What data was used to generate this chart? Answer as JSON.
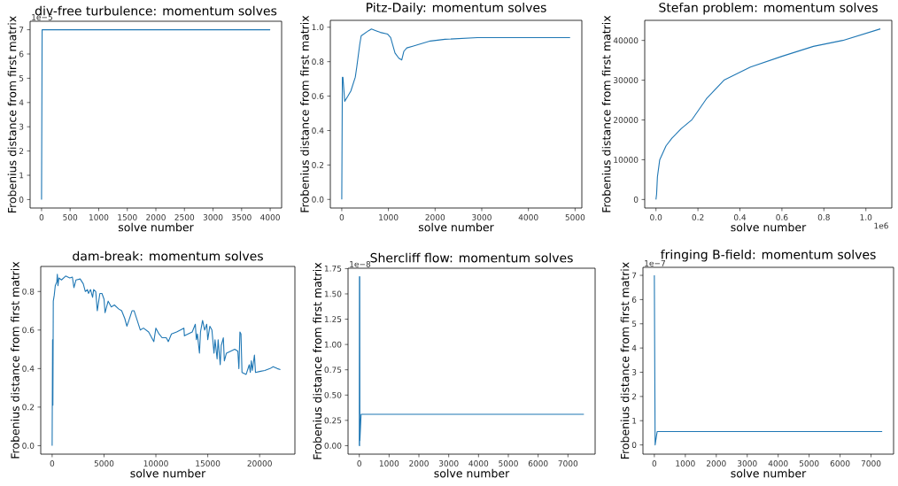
{
  "chart_data": [
    {
      "type": "line",
      "title": "div-free turbulence: momentum solves",
      "xlabel": "solve number",
      "ylabel": "Frobenius distance from first matrix",
      "color": "#1f77b4",
      "annotations": [
        "1e−5"
      ],
      "x": [
        0,
        10,
        4000
      ],
      "values": [
        0,
        7,
        7
      ],
      "xlim": [
        -200,
        4200
      ],
      "ylim": [
        -0.35,
        7.35
      ],
      "xticks": [
        0,
        500,
        1000,
        1500,
        2000,
        2500,
        3000,
        3500,
        4000
      ],
      "yticks": [
        0,
        1,
        2,
        3,
        4,
        5,
        6,
        7
      ]
    },
    {
      "type": "line",
      "title": "Pitz-Daily: momentum solves",
      "xlabel": "solve number",
      "ylabel": "Frobenius distance from first matrix",
      "color": "#1f77b4",
      "x": [
        0,
        13,
        25,
        63,
        132,
        195,
        290,
        322,
        385,
        416,
        574,
        637,
        731,
        826,
        984,
        1047,
        1141,
        1223,
        1286,
        1330,
        1394,
        1520,
        1646,
        1898,
        2213,
        2907,
        4893
      ],
      "values": [
        0,
        0.71,
        0.71,
        0.57,
        0.6,
        0.63,
        0.71,
        0.77,
        0.9,
        0.95,
        0.98,
        0.99,
        0.98,
        0.97,
        0.96,
        0.94,
        0.85,
        0.82,
        0.81,
        0.86,
        0.88,
        0.89,
        0.9,
        0.92,
        0.93,
        0.94,
        0.94
      ],
      "xlim": [
        -245,
        5145
      ],
      "ylim": [
        -0.05,
        1.04
      ],
      "xticks": [
        0,
        1000,
        2000,
        3000,
        4000,
        5000
      ],
      "yticks": [
        {
          "value": 0,
          "label": "0.0"
        },
        {
          "value": 0.2,
          "label": "0.2"
        },
        {
          "value": 0.4,
          "label": "0.4"
        },
        {
          "value": 0.6,
          "label": "0.6"
        },
        {
          "value": 0.8,
          "label": "0.8"
        },
        {
          "value": 1,
          "label": "1.0"
        }
      ]
    },
    {
      "type": "line",
      "title": "Stefan problem: momentum solves",
      "xlabel": "solve number",
      "ylabel": "Frobenius distance from first matrix",
      "color": "#1f77b4",
      "annotations": [
        "1e6"
      ],
      "x": [
        0,
        0.003,
        0.007,
        0.018,
        0.048,
        0.076,
        0.12,
        0.172,
        0.24,
        0.324,
        0.45,
        0.6,
        0.75,
        0.89,
        1.069
      ],
      "values": [
        0,
        1300,
        5700,
        10000,
        13500,
        15400,
        17800,
        20100,
        25300,
        30000,
        33300,
        36000,
        38500,
        40000,
        42900
      ],
      "xlim": [
        -0.0535,
        1.1235
      ],
      "ylim": [
        -2145,
        45045
      ],
      "xticks": [
        {
          "value": 0,
          "label": "0.0"
        },
        {
          "value": 0.2,
          "label": "0.2"
        },
        {
          "value": 0.4,
          "label": "0.4"
        },
        {
          "value": 0.6,
          "label": "0.6"
        },
        {
          "value": 0.8,
          "label": "0.8"
        },
        {
          "value": 1,
          "label": "1.0"
        }
      ],
      "yticks": [
        0,
        10000,
        20000,
        30000,
        40000
      ]
    },
    {
      "type": "line",
      "title": "dam-break: momentum solves",
      "xlabel": "solve number",
      "ylabel": "Frobenius distance from first matrix",
      "color": "#1f77b4",
      "x": [
        0,
        40,
        70,
        110,
        200,
        300,
        450,
        500,
        560,
        650,
        900,
        1300,
        1700,
        1950,
        2100,
        2300,
        2700,
        3000,
        3200,
        3400,
        3500,
        3700,
        3900,
        4000,
        4200,
        4350,
        4600,
        4800,
        5000,
        5100,
        5400,
        5700,
        6000,
        6400,
        6700,
        7000,
        7200,
        7400,
        7700,
        7900,
        8200,
        8500,
        8800,
        9300,
        9700,
        9800,
        10000,
        10300,
        10600,
        11000,
        11200,
        11500,
        12000,
        12700,
        12750,
        13500,
        13800,
        13900,
        14000,
        14200,
        14300,
        14500,
        14700,
        14900,
        15000,
        15200,
        15400,
        15600,
        15700,
        15900,
        16000,
        16200,
        16300,
        16500,
        16600,
        16800,
        17200,
        17600,
        17900,
        18000,
        18100,
        18200,
        18300,
        18700,
        19000,
        19100,
        19200,
        19300,
        19500,
        19600,
        20000,
        20500,
        21000,
        21300,
        21700,
        22000
      ],
      "values": [
        0,
        0.55,
        0.21,
        0.75,
        0.78,
        0.83,
        0.85,
        0.89,
        0.83,
        0.87,
        0.86,
        0.88,
        0.87,
        0.875,
        0.82,
        0.86,
        0.865,
        0.84,
        0.8,
        0.81,
        0.79,
        0.81,
        0.77,
        0.81,
        0.8,
        0.7,
        0.79,
        0.79,
        0.76,
        0.69,
        0.75,
        0.72,
        0.73,
        0.71,
        0.7,
        0.66,
        0.62,
        0.65,
        0.7,
        0.7,
        0.65,
        0.6,
        0.61,
        0.59,
        0.55,
        0.54,
        0.61,
        0.58,
        0.56,
        0.56,
        0.54,
        0.58,
        0.59,
        0.61,
        0.57,
        0.59,
        0.63,
        0.55,
        0.58,
        0.48,
        0.59,
        0.65,
        0.6,
        0.63,
        0.55,
        0.62,
        0.6,
        0.48,
        0.55,
        0.45,
        0.55,
        0.42,
        0.52,
        0.56,
        0.44,
        0.48,
        0.49,
        0.5,
        0.49,
        0.4,
        0.59,
        0.58,
        0.38,
        0.37,
        0.42,
        0.38,
        0.44,
        0.39,
        0.47,
        0.38,
        0.385,
        0.39,
        0.4,
        0.41,
        0.4,
        0.395
      ],
      "xlim": [
        -1100,
        23400
      ],
      "ylim": [
        -0.044,
        0.93
      ],
      "xticks": [
        0,
        5000,
        10000,
        15000,
        20000
      ],
      "yticks": [
        {
          "value": 0,
          "label": "0.0"
        },
        {
          "value": 0.2,
          "label": "0.2"
        },
        {
          "value": 0.4,
          "label": "0.4"
        },
        {
          "value": 0.6,
          "label": "0.6"
        },
        {
          "value": 0.8,
          "label": "0.8"
        }
      ]
    },
    {
      "type": "line",
      "title": "Shercliff flow: momentum solves",
      "xlabel": "solve number",
      "ylabel": "Frobenius distance from first matrix",
      "color": "#1f77b4",
      "annotations": [
        "1e−8"
      ],
      "x": [
        0,
        5,
        10,
        15,
        20,
        60,
        7535
      ],
      "values": [
        0,
        1.67,
        0,
        1.67,
        0.05,
        0.31,
        0.31
      ],
      "xlim": [
        -377,
        7912
      ],
      "ylim": [
        -0.0835,
        1.7535
      ],
      "xticks": [
        0,
        1000,
        2000,
        3000,
        4000,
        5000,
        6000,
        7000
      ],
      "yticks": [
        {
          "value": 0,
          "label": "0.00"
        },
        {
          "value": 0.25,
          "label": "0.25"
        },
        {
          "value": 0.5,
          "label": "0.50"
        },
        {
          "value": 0.75,
          "label": "0.75"
        },
        {
          "value": 1,
          "label": "1.00"
        },
        {
          "value": 1.25,
          "label": "1.25"
        },
        {
          "value": 1.5,
          "label": "1.50"
        },
        {
          "value": 1.75,
          "label": "1.75"
        }
      ]
    },
    {
      "type": "line",
      "title": "fringing B-field: momentum solves",
      "xlabel": "solve number",
      "ylabel": "Frobenius distance from first matrix",
      "color": "#1f77b4",
      "annotations": [
        "1e−7"
      ],
      "x": [
        0,
        25,
        90,
        7360
      ],
      "values": [
        7,
        0,
        0.55,
        0.55
      ],
      "xlim": [
        -368,
        7728
      ],
      "ylim": [
        -0.38,
        7.33
      ],
      "xticks": [
        0,
        1000,
        2000,
        3000,
        4000,
        5000,
        6000,
        7000
      ],
      "yticks": [
        0,
        1,
        2,
        3,
        4,
        5,
        6,
        7
      ]
    }
  ]
}
